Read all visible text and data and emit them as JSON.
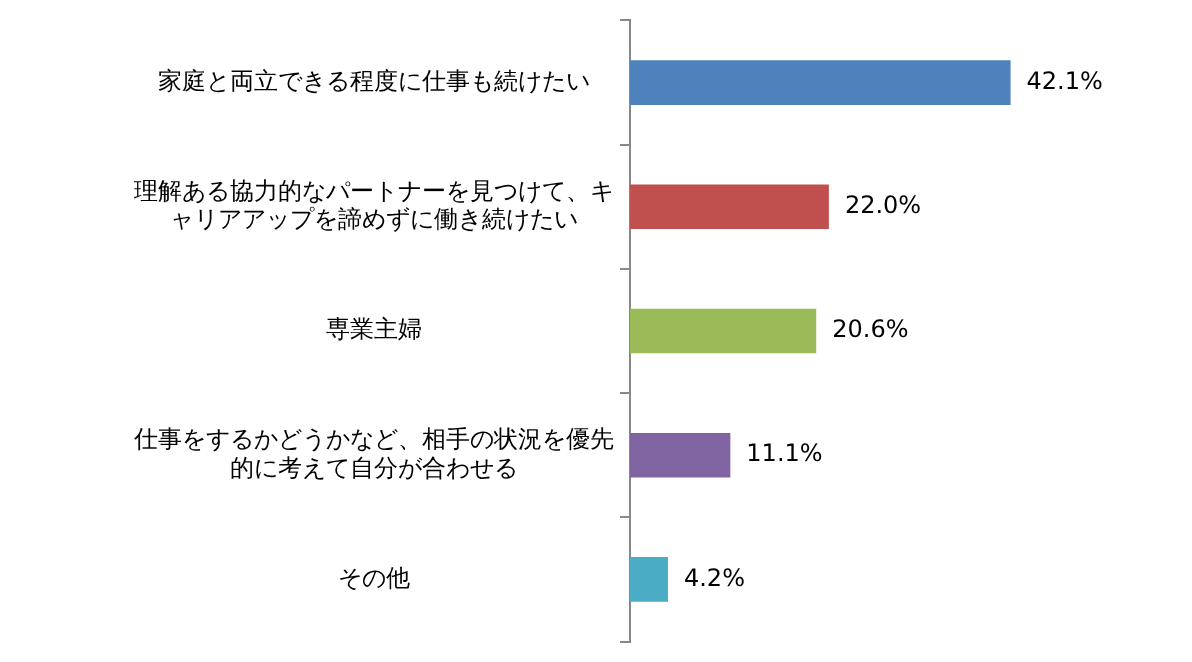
{
  "chart_data": {
    "type": "bar",
    "orientation": "horizontal",
    "categories": [
      "家庭と両立できる程度に仕事も続けたい",
      "理解ある協力的なパートナーを見つけて、キャリアアップを諦めずに働き続けたい",
      "専業主婦",
      "仕事をするかどうかなど、相手の状況を優先的に考えて自分が合わせる",
      "その他"
    ],
    "values": [
      42.1,
      22.0,
      20.6,
      11.1,
      4.2
    ],
    "colors": [
      "#4f81bd",
      "#c0504d",
      "#9bbb59",
      "#8064a2",
      "#4bacc6"
    ],
    "value_labels": [
      "42.1%",
      "22.0%",
      "20.6%",
      "11.1%",
      "4.2%"
    ],
    "tick_labels": "y",
    "legend": false
  }
}
